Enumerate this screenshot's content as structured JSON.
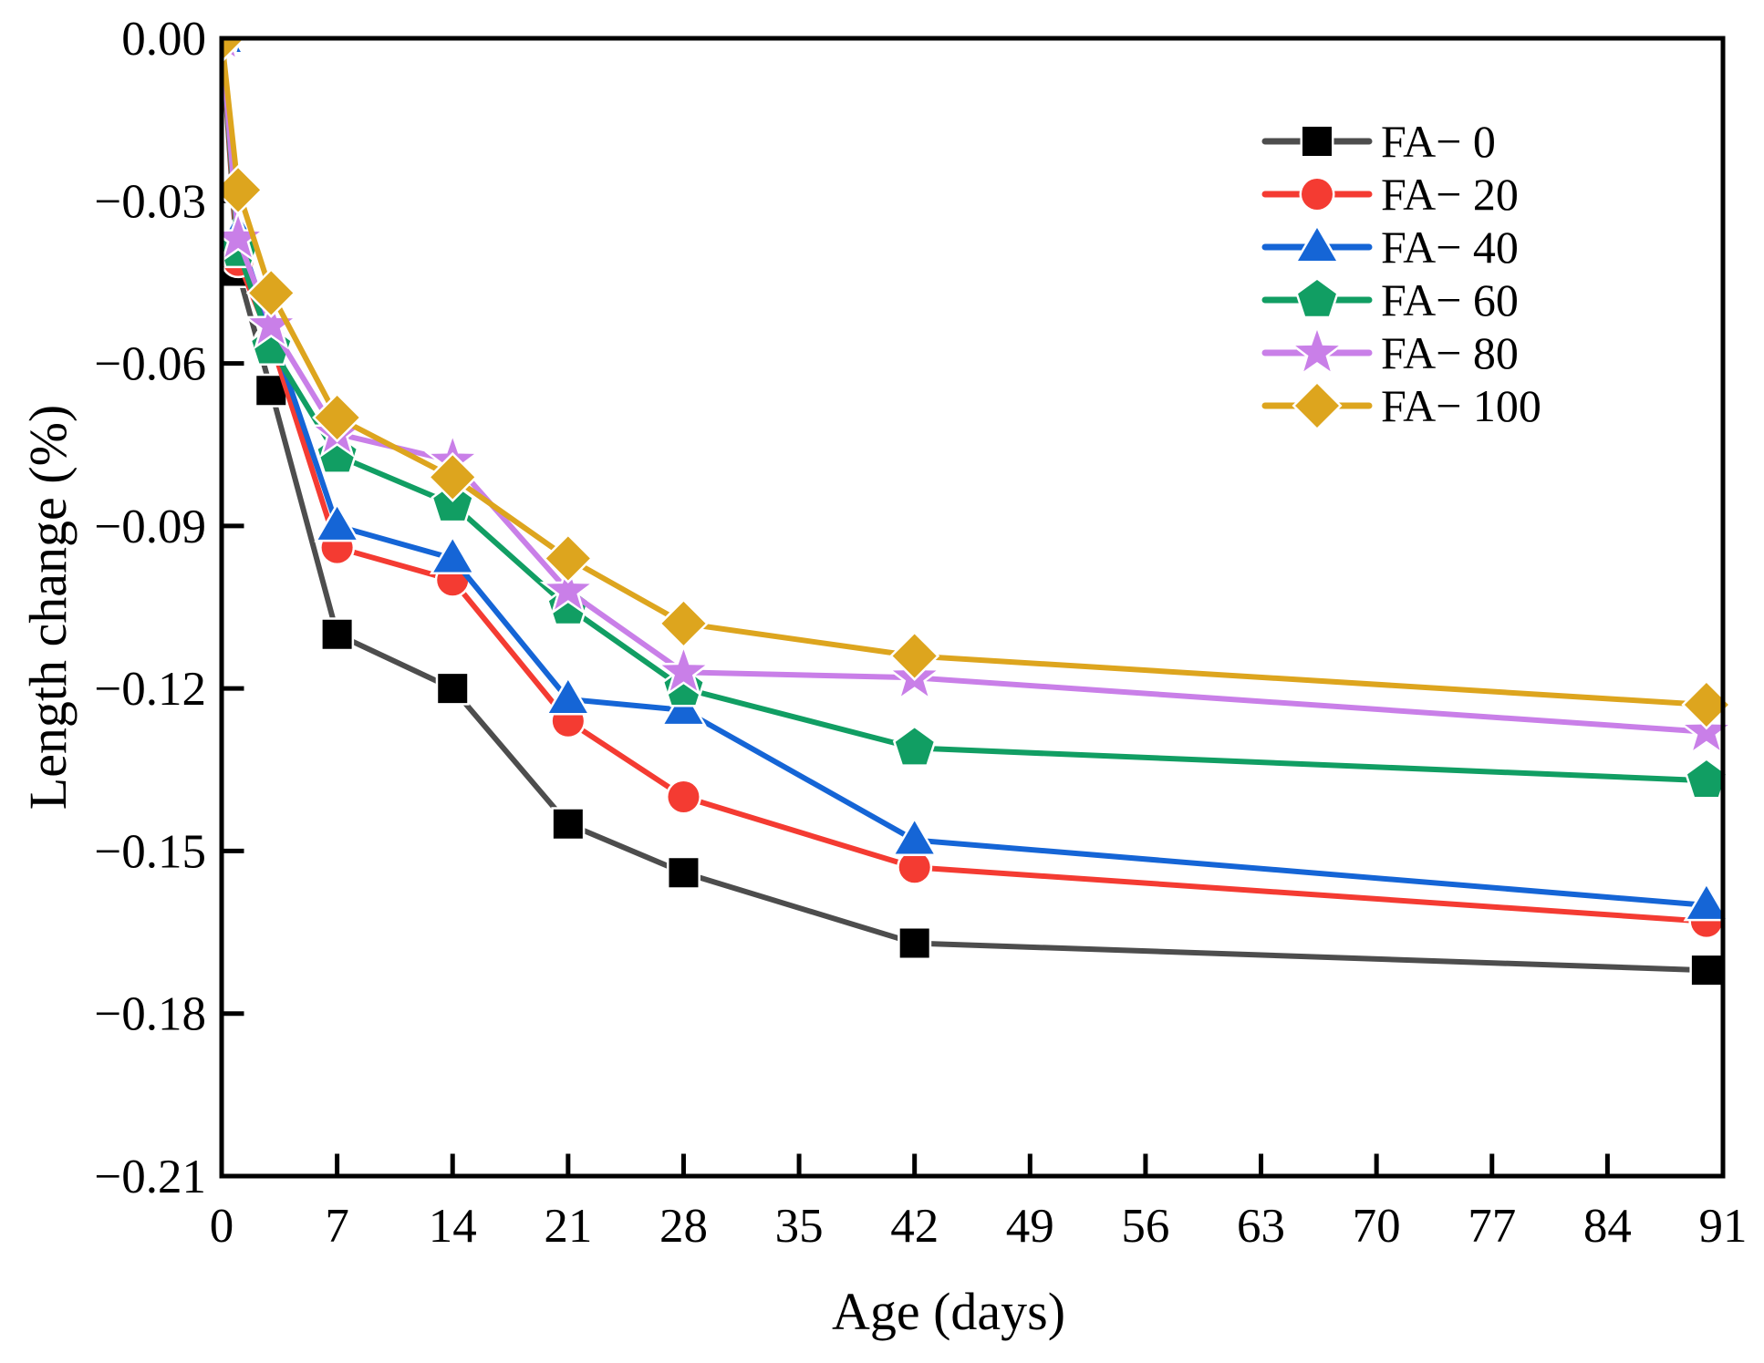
{
  "figure": {
    "background": "#ffffff",
    "frame_color": "#000000"
  },
  "chart_data": {
    "type": "line",
    "title": "",
    "xlabel": "Age (days)",
    "ylabel": "Length change (%)",
    "xlim": [
      0,
      91
    ],
    "ylim": [
      -0.21,
      0
    ],
    "grid": false,
    "xticks": [
      0,
      7,
      14,
      21,
      28,
      35,
      42,
      49,
      56,
      63,
      70,
      77,
      84,
      91
    ],
    "ytick_values": [
      0,
      -0.03,
      -0.06,
      -0.09,
      -0.12,
      -0.15,
      -0.18,
      -0.21
    ],
    "ytick_labels": [
      "0.00",
      "−0.03",
      "−0.06",
      "−0.09",
      "−0.12",
      "−0.15",
      "−0.18",
      "−0.21"
    ],
    "legend_position": "upper right inside",
    "x": [
      0,
      1,
      3,
      7,
      14,
      21,
      28,
      42,
      90
    ],
    "series": [
      {
        "name": "FA− 0",
        "marker": "square",
        "marker_color": "#000000",
        "line_color": "#4d4d4d",
        "values": [
          0,
          -0.043,
          -0.065,
          -0.11,
          -0.12,
          -0.145,
          -0.154,
          -0.167,
          -0.172
        ]
      },
      {
        "name": "FA− 20",
        "marker": "circle",
        "marker_color": "#f43b32",
        "line_color": "#f43b32",
        "values": [
          0,
          -0.041,
          -0.056,
          -0.094,
          -0.1,
          -0.126,
          -0.14,
          -0.153,
          -0.163
        ]
      },
      {
        "name": "FA− 40",
        "marker": "triangle",
        "marker_color": "#1565d6",
        "line_color": "#1565d6",
        "values": [
          0,
          -0.036,
          -0.054,
          -0.09,
          -0.096,
          -0.122,
          -0.124,
          -0.148,
          -0.16
        ]
      },
      {
        "name": "FA− 60",
        "marker": "pentagon",
        "marker_color": "#119e63",
        "line_color": "#119e63",
        "values": [
          0,
          -0.039,
          -0.057,
          -0.077,
          -0.086,
          -0.105,
          -0.12,
          -0.131,
          -0.137
        ]
      },
      {
        "name": "FA− 80",
        "marker": "star",
        "marker_color": "#c97fe8",
        "line_color": "#c97fe8",
        "values": [
          0,
          -0.037,
          -0.053,
          -0.073,
          -0.078,
          -0.102,
          -0.117,
          -0.118,
          -0.128
        ]
      },
      {
        "name": "FA− 100",
        "marker": "diamond",
        "marker_color": "#dda51e",
        "line_color": "#dda51e",
        "values": [
          0,
          -0.028,
          -0.047,
          -0.07,
          -0.081,
          -0.096,
          -0.108,
          -0.114,
          -0.123
        ]
      }
    ]
  }
}
